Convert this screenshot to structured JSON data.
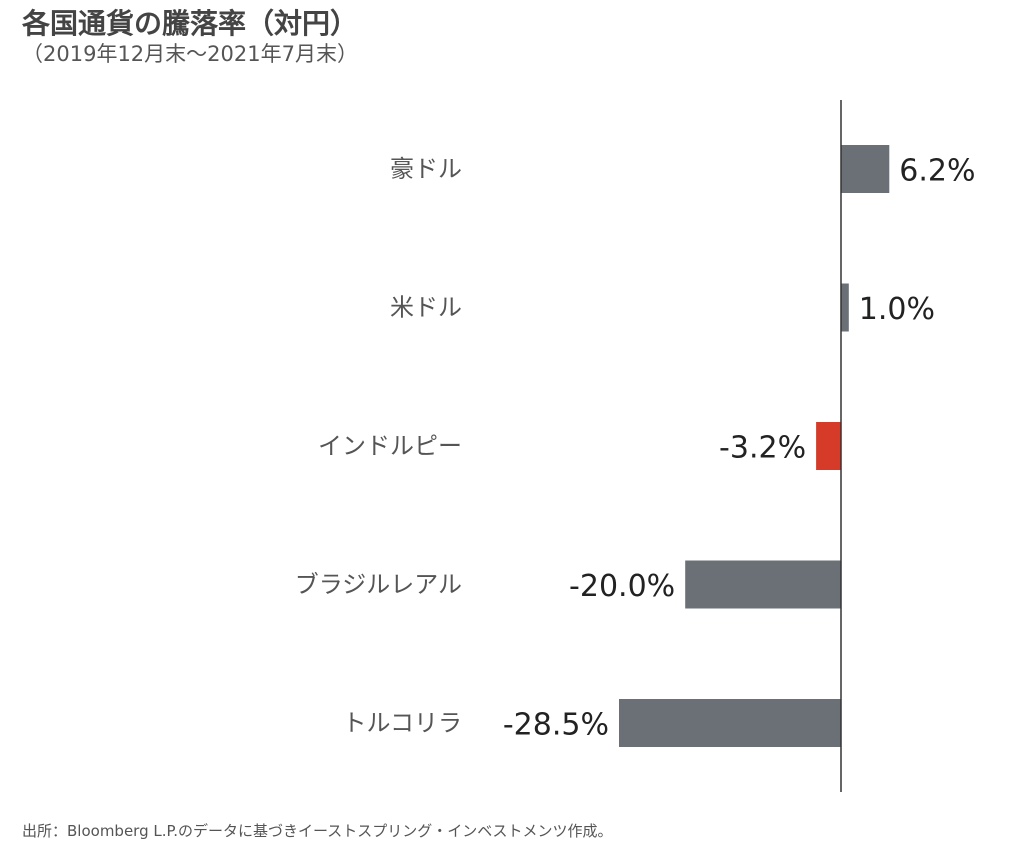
{
  "title": "各国通貨の騰落率（対円）",
  "subtitle": "（2019年12月末～2021年7月末）",
  "source": "出所：Bloomberg L.P.のデータに基づきイーストスプリング・インベストメンツ作成。",
  "colors": {
    "bar_default": "#6b7076",
    "bar_highlight": "#d63b2a",
    "axis": "#333333"
  },
  "chart_data": {
    "type": "bar",
    "orientation": "horizontal",
    "categories": [
      "豪ドル",
      "米ドル",
      "インドルピー",
      "ブラジルレアル",
      "トルコリラ"
    ],
    "values": [
      6.2,
      1.0,
      -3.2,
      -20.0,
      -28.5
    ],
    "value_labels": [
      "6.2%",
      "1.0%",
      "-3.2%",
      "-20.0%",
      "-28.5%"
    ],
    "highlight_category": "インドルピー",
    "unit": "%",
    "xlim": [
      -30,
      10
    ]
  }
}
